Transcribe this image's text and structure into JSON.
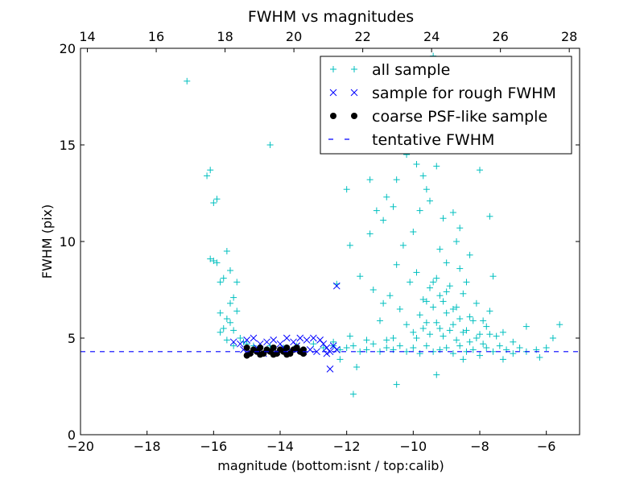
{
  "chart_data": {
    "type": "scatter",
    "title": "FWHM vs magnitudes",
    "xlabel": "magnitude (bottom:isnt / top:calib)",
    "ylabel": "FWHM (pix)",
    "xlim": [
      -20,
      -5
    ],
    "ylim": [
      0,
      20
    ],
    "top_xlim": [
      13.8,
      28.3
    ],
    "bottom_ticks": [
      -20,
      -18,
      -16,
      -14,
      -12,
      -10,
      -8,
      -6
    ],
    "bottom_tick_labels": [
      "−20",
      "−18",
      "−16",
      "−14",
      "−12",
      "−10",
      "−8",
      "−6"
    ],
    "top_ticks": [
      14,
      16,
      18,
      20,
      22,
      24,
      26,
      28
    ],
    "top_tick_labels": [
      "14",
      "16",
      "18",
      "20",
      "22",
      "24",
      "26",
      "28"
    ],
    "y_ticks": [
      0,
      5,
      10,
      15,
      20
    ],
    "y_tick_labels": [
      "0",
      "5",
      "10",
      "15",
      "20"
    ],
    "legend_position": "top-right",
    "series": [
      {
        "name": "all sample",
        "marker": "plus",
        "color": "#00bfbf",
        "points": [
          [
            -16.8,
            18.3
          ],
          [
            -14.3,
            15.0
          ],
          [
            -16.2,
            13.4
          ],
          [
            -16.1,
            13.7
          ],
          [
            -16.0,
            12.0
          ],
          [
            -15.9,
            12.2
          ],
          [
            -16.1,
            9.1
          ],
          [
            -16.0,
            9.0
          ],
          [
            -15.9,
            8.9
          ],
          [
            -15.6,
            9.5
          ],
          [
            -15.7,
            8.1
          ],
          [
            -15.8,
            7.9
          ],
          [
            -15.5,
            8.5
          ],
          [
            -15.3,
            7.9
          ],
          [
            -15.4,
            7.1
          ],
          [
            -15.5,
            6.8
          ],
          [
            -15.3,
            6.4
          ],
          [
            -15.8,
            6.3
          ],
          [
            -15.6,
            6.0
          ],
          [
            -15.5,
            5.8
          ],
          [
            -15.7,
            5.5
          ],
          [
            -15.8,
            5.3
          ],
          [
            -15.4,
            5.4
          ],
          [
            -15.2,
            5.0
          ],
          [
            -15.6,
            4.9
          ],
          [
            -15.1,
            4.8
          ],
          [
            -15.4,
            4.6
          ],
          [
            -15.0,
            4.7
          ],
          [
            -14.8,
            4.6
          ],
          [
            -14.6,
            4.5
          ],
          [
            -14.3,
            4.6
          ],
          [
            -13.9,
            4.5
          ],
          [
            -13.5,
            4.6
          ],
          [
            -13.0,
            4.7
          ],
          [
            -12.7,
            4.5
          ],
          [
            -12.4,
            4.6
          ],
          [
            -12.2,
            4.4
          ],
          [
            -12.0,
            4.5
          ],
          [
            -11.8,
            4.6
          ],
          [
            -11.6,
            4.3
          ],
          [
            -11.4,
            4.4
          ],
          [
            -11.2,
            4.7
          ],
          [
            -11.0,
            4.3
          ],
          [
            -10.8,
            4.5
          ],
          [
            -10.6,
            4.4
          ],
          [
            -10.4,
            4.6
          ],
          [
            -10.2,
            4.3
          ],
          [
            -10.0,
            4.5
          ],
          [
            -9.8,
            4.2
          ],
          [
            -9.6,
            4.6
          ],
          [
            -9.4,
            4.3
          ],
          [
            -9.2,
            4.4
          ],
          [
            -9.0,
            4.5
          ],
          [
            -8.8,
            4.2
          ],
          [
            -8.6,
            4.6
          ],
          [
            -8.4,
            4.3
          ],
          [
            -8.2,
            4.4
          ],
          [
            -8.0,
            4.1
          ],
          [
            -7.8,
            4.5
          ],
          [
            -7.6,
            4.3
          ],
          [
            -7.4,
            4.6
          ],
          [
            -7.2,
            4.4
          ],
          [
            -7.0,
            4.2
          ],
          [
            -6.8,
            4.5
          ],
          [
            -6.6,
            4.3
          ],
          [
            -6.3,
            4.4
          ],
          [
            -6.0,
            4.5
          ],
          [
            -5.8,
            5.0
          ],
          [
            -5.6,
            5.7
          ],
          [
            -6.6,
            5.6
          ],
          [
            -7.0,
            4.8
          ],
          [
            -7.3,
            3.9
          ],
          [
            -6.2,
            4.0
          ],
          [
            -11.8,
            2.1
          ],
          [
            -10.5,
            2.6
          ],
          [
            -12.2,
            3.9
          ],
          [
            -11.7,
            3.5
          ],
          [
            -9.3,
            3.1
          ],
          [
            -8.5,
            3.9
          ],
          [
            -12.0,
            12.7
          ],
          [
            -11.3,
            13.2
          ],
          [
            -10.5,
            13.2
          ],
          [
            -11.9,
            9.8
          ],
          [
            -11.3,
            10.4
          ],
          [
            -11.1,
            11.6
          ],
          [
            -10.9,
            11.1
          ],
          [
            -10.6,
            11.8
          ],
          [
            -10.8,
            12.3
          ],
          [
            -10.2,
            14.5
          ],
          [
            -9.9,
            14.0
          ],
          [
            -9.7,
            13.4
          ],
          [
            -9.6,
            12.7
          ],
          [
            -9.3,
            13.9
          ],
          [
            -9.5,
            12.1
          ],
          [
            -9.8,
            11.6
          ],
          [
            -9.1,
            11.2
          ],
          [
            -8.8,
            11.5
          ],
          [
            -8.6,
            10.7
          ],
          [
            -8.7,
            10.0
          ],
          [
            -8.0,
            13.7
          ],
          [
            -7.7,
            11.3
          ],
          [
            -9.4,
            19.6
          ],
          [
            -10.0,
            10.5
          ],
          [
            -10.3,
            9.8
          ],
          [
            -9.2,
            9.6
          ],
          [
            -8.3,
            9.3
          ],
          [
            -7.6,
            8.2
          ],
          [
            -10.5,
            8.8
          ],
          [
            -11.6,
            8.2
          ],
          [
            -12.3,
            7.8
          ],
          [
            -11.2,
            7.5
          ],
          [
            -10.9,
            6.8
          ],
          [
            -10.7,
            7.2
          ],
          [
            -10.4,
            6.5
          ],
          [
            -10.1,
            7.9
          ],
          [
            -9.9,
            8.4
          ],
          [
            -9.7,
            7.0
          ],
          [
            -9.5,
            7.6
          ],
          [
            -9.3,
            8.1
          ],
          [
            -9.1,
            6.9
          ],
          [
            -8.9,
            7.7
          ],
          [
            -8.7,
            6.6
          ],
          [
            -8.5,
            7.3
          ],
          [
            -8.3,
            6.1
          ],
          [
            -8.1,
            6.8
          ],
          [
            -7.9,
            5.9
          ],
          [
            -7.7,
            6.4
          ],
          [
            -9.8,
            6.2
          ],
          [
            -9.6,
            5.8
          ],
          [
            -9.4,
            6.6
          ],
          [
            -9.2,
            5.5
          ],
          [
            -9.0,
            6.3
          ],
          [
            -8.8,
            5.7
          ],
          [
            -8.6,
            6.0
          ],
          [
            -8.4,
            5.4
          ],
          [
            -8.2,
            5.9
          ],
          [
            -8.0,
            5.2
          ],
          [
            -7.8,
            5.6
          ],
          [
            -7.5,
            5.1
          ],
          [
            -10.2,
            5.7
          ],
          [
            -10.0,
            5.3
          ],
          [
            -9.9,
            5.0
          ],
          [
            -9.7,
            5.5
          ],
          [
            -9.5,
            5.2
          ],
          [
            -9.3,
            5.8
          ],
          [
            -9.1,
            5.1
          ],
          [
            -8.9,
            5.4
          ],
          [
            -8.7,
            4.9
          ],
          [
            -8.5,
            5.3
          ],
          [
            -8.3,
            4.8
          ],
          [
            -8.1,
            5.0
          ],
          [
            -7.9,
            4.7
          ],
          [
            -7.7,
            5.2
          ],
          [
            -7.3,
            5.3
          ],
          [
            -11.0,
            5.9
          ],
          [
            -10.6,
            5.0
          ],
          [
            -11.4,
            4.9
          ],
          [
            -12.4,
            4.8
          ],
          [
            -11.9,
            5.1
          ],
          [
            -10.8,
            4.9
          ],
          [
            -9.0,
            7.4
          ],
          [
            -9.2,
            7.2
          ],
          [
            -8.8,
            6.5
          ],
          [
            -9.6,
            6.9
          ],
          [
            -9.4,
            7.9
          ],
          [
            -8.6,
            8.6
          ],
          [
            -9.0,
            8.9
          ],
          [
            -8.4,
            7.9
          ]
        ]
      },
      {
        "name": "sample for rough FWHM",
        "marker": "x",
        "color": "#0000ff",
        "points": [
          [
            -15.4,
            4.8
          ],
          [
            -15.2,
            4.7
          ],
          [
            -15.0,
            4.9
          ],
          [
            -14.8,
            5.0
          ],
          [
            -14.6,
            4.7
          ],
          [
            -14.4,
            4.8
          ],
          [
            -14.2,
            4.9
          ],
          [
            -14.0,
            4.7
          ],
          [
            -13.8,
            5.0
          ],
          [
            -13.6,
            4.8
          ],
          [
            -13.4,
            5.0
          ],
          [
            -13.2,
            4.9
          ],
          [
            -13.0,
            5.0
          ],
          [
            -15.1,
            4.4
          ],
          [
            -14.9,
            4.3
          ],
          [
            -14.7,
            4.5
          ],
          [
            -14.5,
            4.2
          ],
          [
            -14.3,
            4.4
          ],
          [
            -14.1,
            4.3
          ],
          [
            -13.9,
            4.5
          ],
          [
            -13.7,
            4.4
          ],
          [
            -13.5,
            4.6
          ],
          [
            -13.3,
            4.3
          ],
          [
            -13.1,
            4.4
          ],
          [
            -12.9,
            4.3
          ],
          [
            -12.8,
            4.9
          ],
          [
            -12.7,
            4.7
          ],
          [
            -12.6,
            4.5
          ],
          [
            -12.5,
            4.3
          ],
          [
            -12.4,
            4.6
          ],
          [
            -12.3,
            4.4
          ],
          [
            -12.6,
            4.2
          ],
          [
            -12.3,
            7.7
          ],
          [
            -12.5,
            3.4
          ]
        ]
      },
      {
        "name": "coarse PSF-like sample",
        "marker": "circle",
        "color": "#000000",
        "points": [
          [
            -15.0,
            4.5
          ],
          [
            -14.9,
            4.2
          ],
          [
            -14.8,
            4.4
          ],
          [
            -14.7,
            4.3
          ],
          [
            -14.6,
            4.5
          ],
          [
            -14.5,
            4.2
          ],
          [
            -14.4,
            4.4
          ],
          [
            -14.3,
            4.3
          ],
          [
            -14.2,
            4.5
          ],
          [
            -14.1,
            4.2
          ],
          [
            -14.0,
            4.4
          ],
          [
            -13.9,
            4.3
          ],
          [
            -13.8,
            4.5
          ],
          [
            -13.7,
            4.2
          ],
          [
            -13.6,
            4.4
          ],
          [
            -13.5,
            4.5
          ],
          [
            -13.4,
            4.3
          ],
          [
            -13.3,
            4.4
          ],
          [
            -13.3,
            4.2
          ],
          [
            -15.0,
            4.1
          ],
          [
            -14.6,
            4.15
          ],
          [
            -14.2,
            4.15
          ],
          [
            -13.8,
            4.15
          ]
        ]
      },
      {
        "name": "tentative FWHM",
        "marker": "dashed-line",
        "color": "#0000ff",
        "y": 4.3
      }
    ]
  }
}
